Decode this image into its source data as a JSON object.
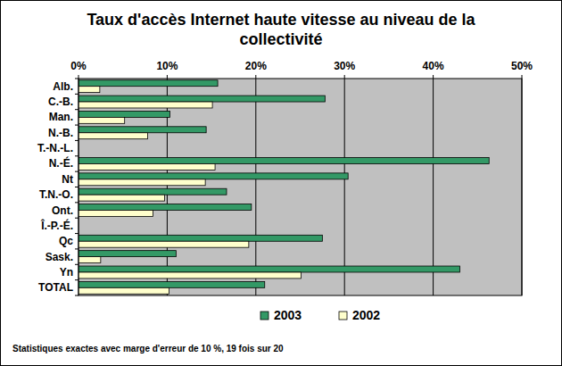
{
  "chart_data": {
    "type": "bar",
    "orientation": "horizontal",
    "title": "Taux d'accès Internet haute vitesse au niveau de la collectivité",
    "footnote": "Statistiques exactes avec marge d'erreur de 10 %, 19 fois sur 20",
    "categories": [
      "Alb.",
      "C.-B.",
      "Man.",
      "N.-B.",
      "T.-N.-L.",
      "N.-É.",
      "Nt",
      "T.N.-O.",
      "Ont.",
      "Î.-P.-É.",
      "Qc",
      "Sask.",
      "Yn",
      "TOTAL"
    ],
    "series": [
      {
        "name": "2003",
        "color": "#339966",
        "values": [
          15.7,
          27.8,
          10.3,
          14.4,
          null,
          46.3,
          30.4,
          16.7,
          19.5,
          null,
          27.5,
          11.0,
          43.0,
          21.0
        ]
      },
      {
        "name": "2002",
        "color": "#ffffcc",
        "values": [
          2.4,
          15.1,
          5.2,
          7.8,
          null,
          15.4,
          14.3,
          9.7,
          8.4,
          null,
          19.2,
          2.5,
          25.1,
          10.2
        ]
      }
    ],
    "xlim": [
      0,
      50
    ],
    "xticks": [
      {
        "value": 0,
        "label": "0%"
      },
      {
        "value": 10,
        "label": "10%"
      },
      {
        "value": 20,
        "label": "20%"
      },
      {
        "value": 30,
        "label": "30%"
      },
      {
        "value": 40,
        "label": "40%"
      },
      {
        "value": 50,
        "label": "50%"
      }
    ],
    "grid": true,
    "legend": "bottom"
  }
}
